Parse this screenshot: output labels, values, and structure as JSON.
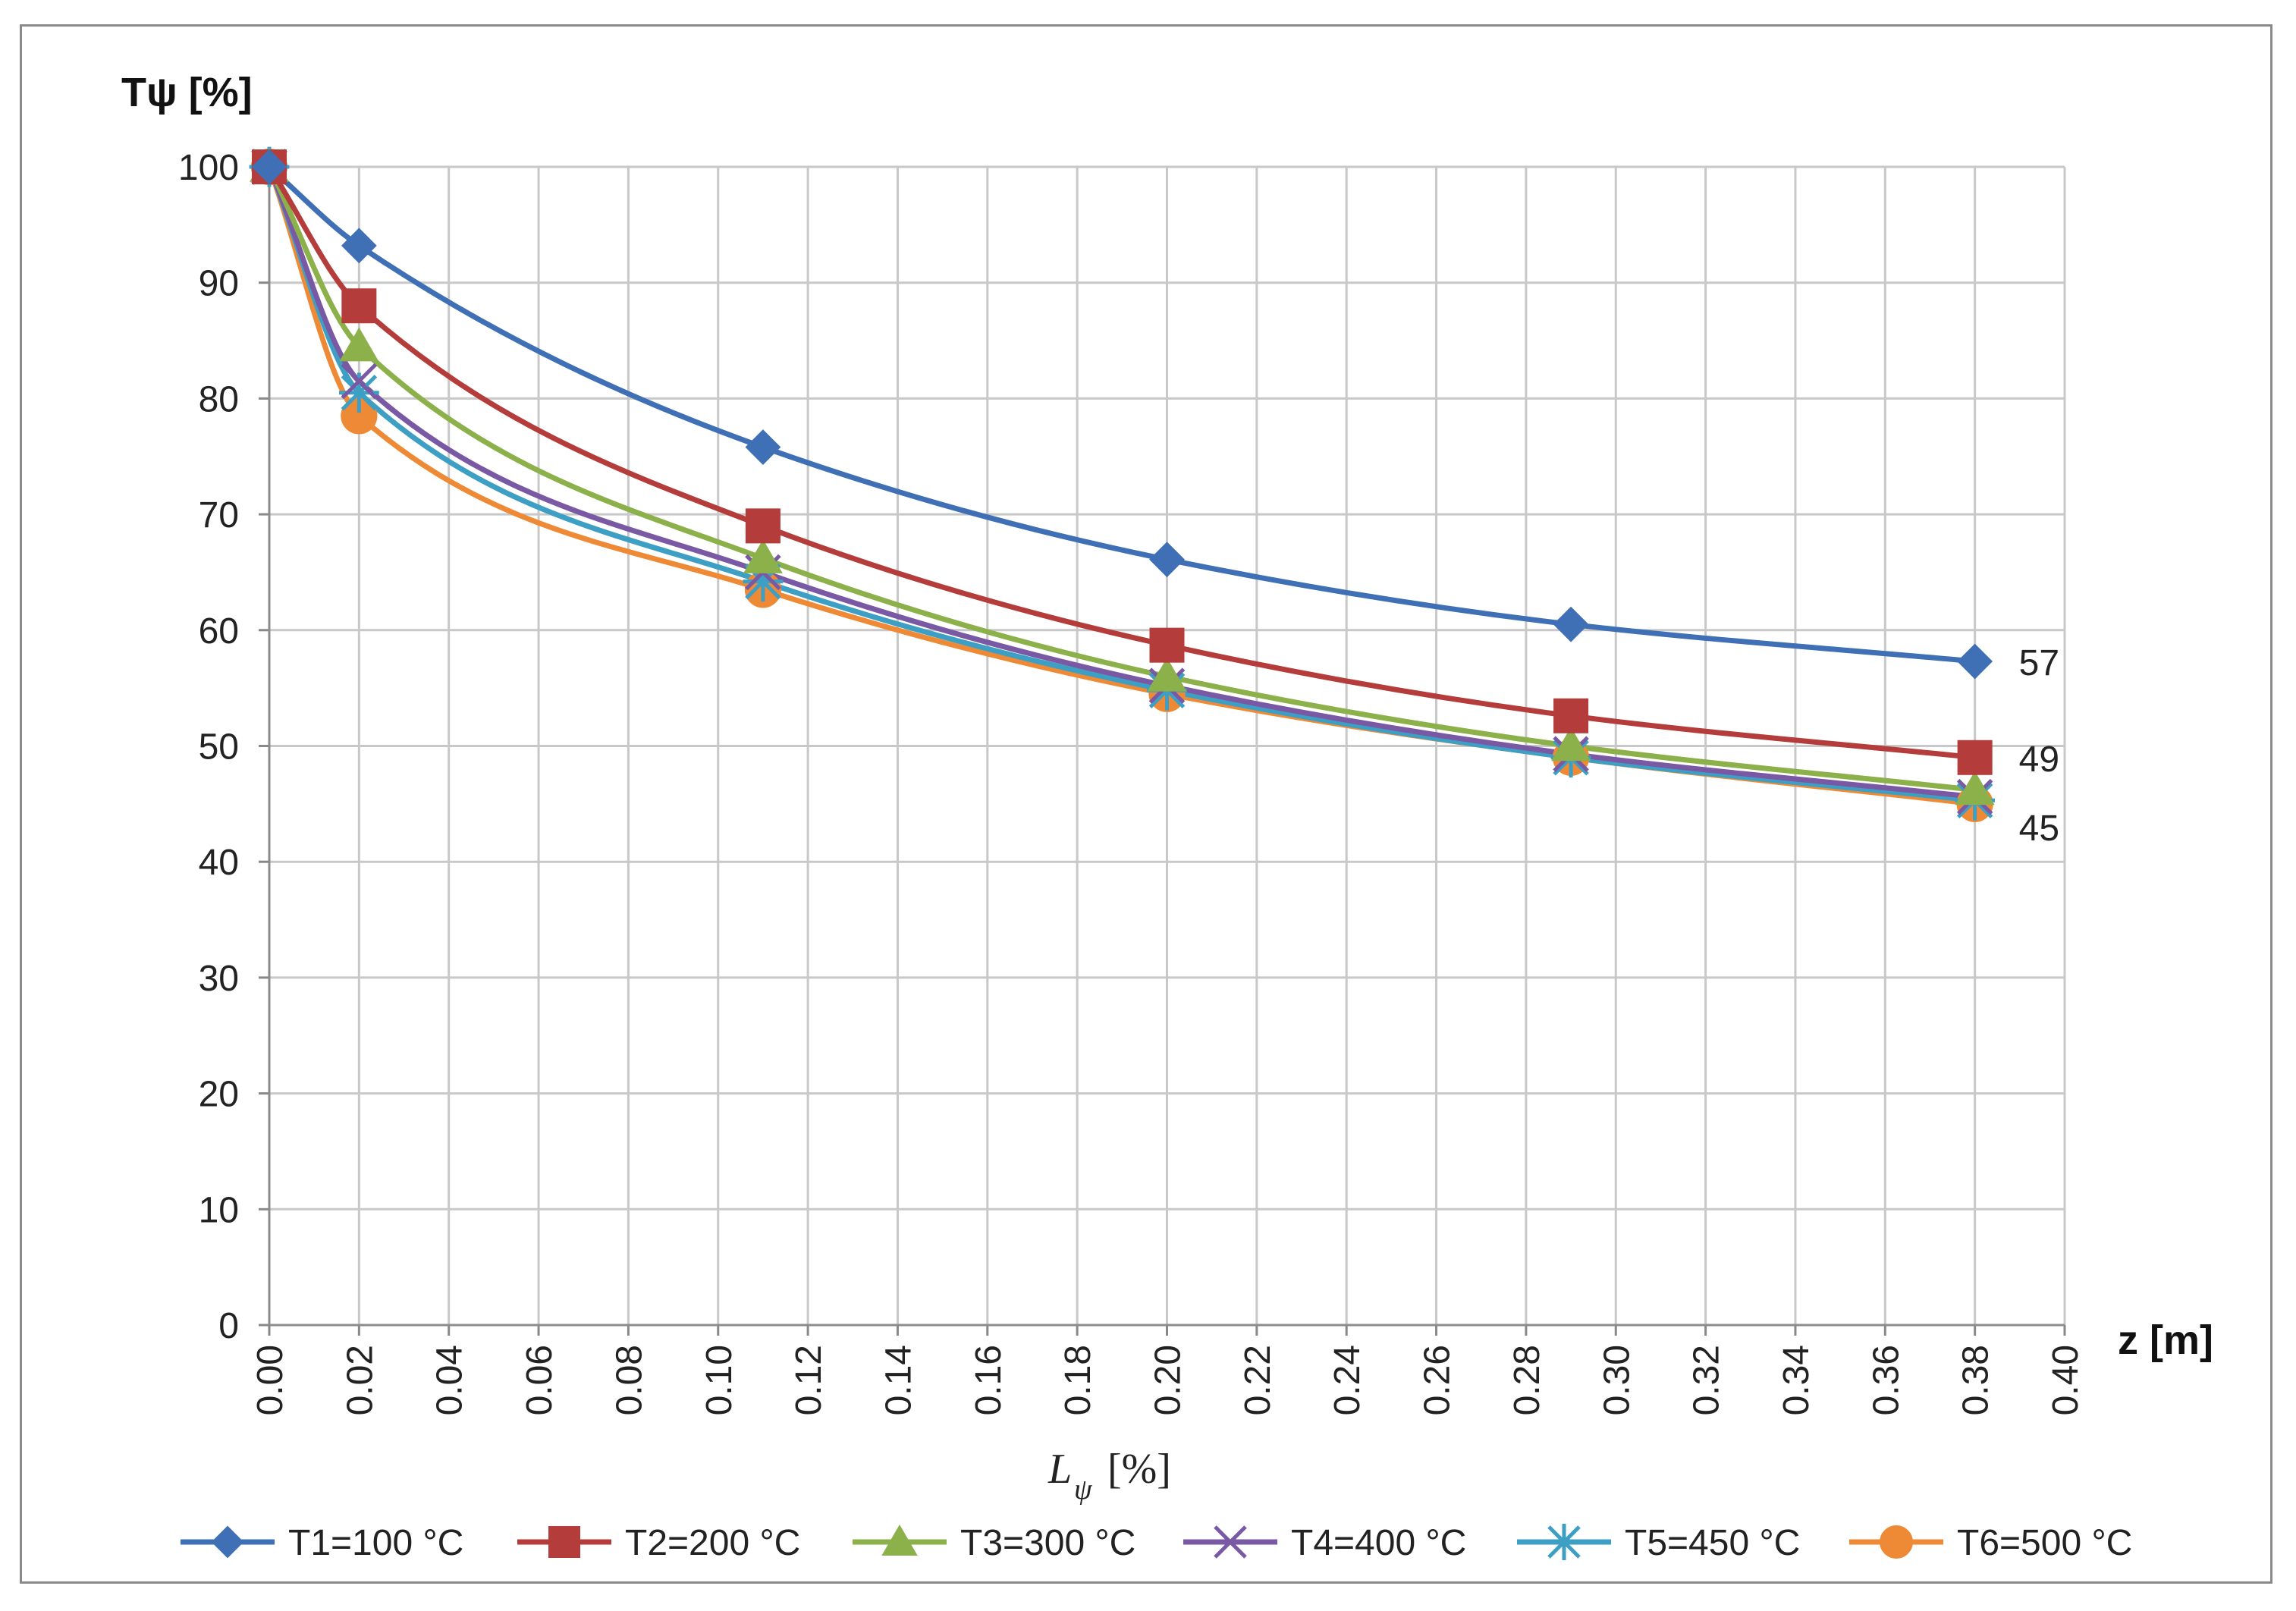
{
  "chart_data": {
    "type": "line",
    "title": "",
    "ylabel": "Tψ [%]",
    "xlabel": "z [m]",
    "below_axis_label": {
      "main": "L",
      "sub": "ψ",
      "unit": "[%]"
    },
    "xlim": [
      0,
      0.4
    ],
    "ylim": [
      0,
      100
    ],
    "xticks": [
      "0.00",
      "0.02",
      "0.04",
      "0.06",
      "0.08",
      "0.10",
      "0.12",
      "0.14",
      "0.16",
      "0.18",
      "0.20",
      "0.22",
      "0.24",
      "0.26",
      "0.28",
      "0.30",
      "0.32",
      "0.34",
      "0.36",
      "0.38",
      "0.40"
    ],
    "yticks": [
      "0",
      "10",
      "20",
      "30",
      "40",
      "50",
      "60",
      "70",
      "80",
      "90",
      "100"
    ],
    "grid": true,
    "legend_position": "bottom",
    "x": [
      0.0,
      0.02,
      0.11,
      0.2,
      0.29,
      0.38
    ],
    "series": [
      {
        "name": "T1=100 °C",
        "color": "#3F6FB5",
        "marker": "diamond",
        "values": [
          100,
          93.2,
          75.8,
          66.1,
          60.5,
          57.3
        ]
      },
      {
        "name": "T2=200 °C",
        "color": "#B43C3A",
        "marker": "square",
        "values": [
          100,
          88.0,
          69.0,
          58.7,
          52.6,
          49.0
        ]
      },
      {
        "name": "T3=300 °C",
        "color": "#8CB04A",
        "marker": "triangle",
        "values": [
          100,
          84.5,
          66.2,
          56.0,
          50.0,
          46.2
        ]
      },
      {
        "name": "T4=400 °C",
        "color": "#7A59A4",
        "marker": "x",
        "values": [
          100,
          81.5,
          65.0,
          55.2,
          49.3,
          45.6
        ]
      },
      {
        "name": "T5=450 °C",
        "color": "#3E9FC4",
        "marker": "star",
        "values": [
          100,
          80.5,
          64.2,
          54.8,
          49.0,
          45.3
        ]
      },
      {
        "name": "T6=500 °C",
        "color": "#EE8A35",
        "marker": "circle",
        "values": [
          100,
          78.5,
          63.5,
          54.5,
          49.0,
          45.0
        ]
      }
    ],
    "annotations": [
      {
        "text": "57",
        "x": 0.38,
        "y": 57.3
      },
      {
        "text": "49",
        "x": 0.38,
        "y": 49.0
      },
      {
        "text": "45",
        "x": 0.38,
        "y": 45.0
      }
    ]
  }
}
